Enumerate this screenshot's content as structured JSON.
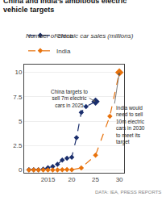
{
  "chart_data": {
    "type": "line",
    "title": "China and India’s ambitious electric\nvehicle targets",
    "subtitle": "Number of electric car sales (millions)",
    "source": "DATA: IEA, PRESS REPORTS",
    "series": [
      {
        "name": "China",
        "color": "#1a2e6c",
        "marker": "diamond",
        "line_style": "dashed",
        "x": [
          2011,
          2012,
          2013,
          2014,
          2015,
          2016,
          2017,
          2018,
          2019,
          2020,
          2021,
          2022,
          2023,
          2025
        ],
        "values": [
          0.01,
          0.01,
          0.02,
          0.07,
          0.21,
          0.35,
          0.58,
          1.0,
          1.2,
          1.3,
          3.3,
          5.9,
          6.5,
          7.0
        ]
      },
      {
        "name": "India",
        "color": "#e8720c",
        "marker": "diamond",
        "line_style": "dashed",
        "x": [
          2011,
          2012,
          2013,
          2014,
          2015,
          2016,
          2017,
          2018,
          2019,
          2020,
          2022,
          2025,
          2028,
          2030
        ],
        "values": [
          0.0,
          0.0,
          0.0,
          0.0,
          0.0,
          0.0,
          0.0,
          0.02,
          0.03,
          0.02,
          0.2,
          1.5,
          5.5,
          10.0
        ]
      }
    ],
    "xlim": [
      2010,
      2031
    ],
    "ylim": [
      -0.3,
      10.8
    ],
    "xticks": [
      2015,
      {
        "value": 2020,
        "label": "20"
      },
      {
        "value": 2025,
        "label": "25"
      },
      {
        "value": 2030,
        "label": "30"
      }
    ],
    "yticks": [
      0,
      2.5,
      5,
      7.5,
      10
    ],
    "grid": "y",
    "legend": "top",
    "annotations": [
      {
        "text": "China targets to\nsell 7m electric\ncars in 2025",
        "x": 2025,
        "y": 7.0,
        "text_x": 2019.5,
        "text_y": 8.5
      },
      {
        "text": "India would\nneed to sell\n10m electric\ncars in 2030\nto meet its\ntarget",
        "x": 2030,
        "y": 10.0,
        "text_x": 2029.0,
        "text_y": 6.8
      }
    ]
  }
}
